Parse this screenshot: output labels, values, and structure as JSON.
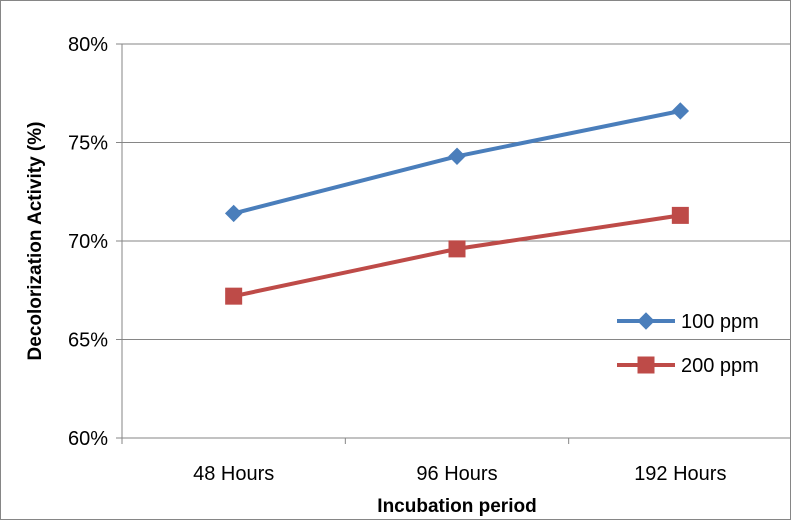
{
  "chart_data": {
    "type": "line",
    "categories": [
      "48 Hours",
      "96 Hours",
      "192 Hours"
    ],
    "series": [
      {
        "name": "100 ppm",
        "values": [
          71.4,
          74.3,
          76.6
        ],
        "color": "#4a7ebb",
        "marker": "diamond"
      },
      {
        "name": "200 ppm",
        "values": [
          67.2,
          69.6,
          71.3
        ],
        "color": "#be4b48",
        "marker": "square"
      }
    ],
    "xlabel": "Incubation period",
    "ylabel": "Decolorization Activity (%)",
    "ylim": [
      60,
      80
    ],
    "yticks": [
      60,
      65,
      70,
      75,
      80
    ],
    "ytick_labels": [
      "60%",
      "65%",
      "70%",
      "75%",
      "80%"
    ],
    "grid": true,
    "legend_position": "right"
  }
}
